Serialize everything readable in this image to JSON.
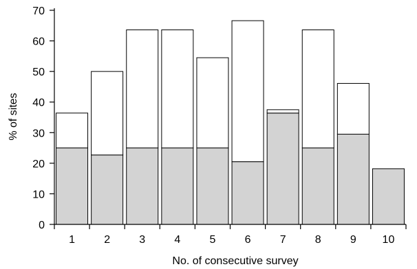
{
  "chart_data": {
    "type": "bar",
    "stacked": true,
    "title": "",
    "xlabel": "No. of consecutive survey",
    "ylabel": "% of sites",
    "ylim": [
      0,
      70
    ],
    "yticks": [
      0,
      10,
      20,
      30,
      40,
      50,
      60,
      70
    ],
    "grid": false,
    "legend": "none",
    "categories": [
      "1",
      "2",
      "3",
      "4",
      "5",
      "6",
      "7",
      "8",
      "9",
      "10"
    ],
    "series": [
      {
        "values": [
          25,
          22.7,
          25,
          25,
          25,
          20.5,
          36.4,
          25,
          29.5,
          18.2
        ],
        "color": "#d3d3d3"
      },
      {
        "values": [
          11.4,
          27.3,
          38.6,
          38.6,
          29.5,
          46.1,
          1.1,
          38.6,
          16.6,
          0
        ],
        "color": "#ffffff"
      }
    ]
  }
}
